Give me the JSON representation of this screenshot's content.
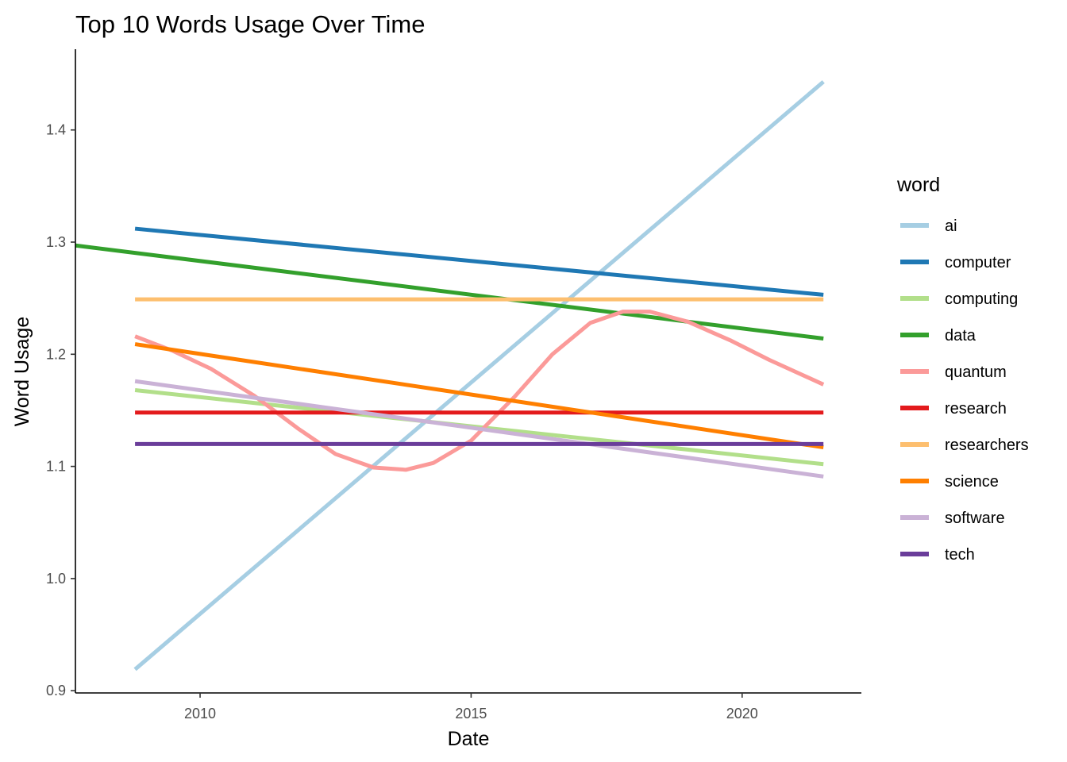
{
  "chart_data": {
    "type": "line",
    "title": "Top 10 Words Usage Over Time",
    "xlabel": "Date",
    "ylabel": "Word Usage",
    "xlim": [
      2007.7,
      2022.2
    ],
    "ylim": [
      0.898,
      1.472
    ],
    "x_ticks": [
      2010,
      2015,
      2020
    ],
    "y_ticks": [
      0.9,
      1.0,
      1.1,
      1.2,
      1.3,
      1.4
    ],
    "x_tick_labels": [
      "2010",
      "2015",
      "2020"
    ],
    "y_tick_labels": [
      "0.9",
      "1.0",
      "1.1",
      "1.2",
      "1.3",
      "1.4"
    ],
    "grid": false,
    "legend": {
      "title": "word",
      "position": "right"
    },
    "series": [
      {
        "name": "ai",
        "color": "#a6cee3",
        "x": [
          2008.8,
          2021.5
        ],
        "y": [
          0.919,
          1.443
        ]
      },
      {
        "name": "computer",
        "color": "#1f78b4",
        "x": [
          2008.8,
          2021.5
        ],
        "y": [
          1.312,
          1.253
        ]
      },
      {
        "name": "computing",
        "color": "#b2df8a",
        "x": [
          2008.8,
          2021.5
        ],
        "y": [
          1.168,
          1.102
        ]
      },
      {
        "name": "data",
        "color": "#33a02c",
        "x": [
          2007.7,
          2021.5
        ],
        "y": [
          1.297,
          1.214
        ]
      },
      {
        "name": "quantum",
        "color": "#fb9a99",
        "x": [
          2008.8,
          2009.5,
          2010.2,
          2011.0,
          2011.8,
          2012.5,
          2013.2,
          2013.8,
          2014.3,
          2015.0,
          2015.8,
          2016.5,
          2017.2,
          2017.8,
          2018.3,
          2019.0,
          2019.8,
          2020.5,
          2021.5
        ],
        "y": [
          1.216,
          1.203,
          1.187,
          1.163,
          1.134,
          1.111,
          1.099,
          1.097,
          1.103,
          1.123,
          1.162,
          1.2,
          1.228,
          1.238,
          1.238,
          1.229,
          1.212,
          1.195,
          1.173
        ]
      },
      {
        "name": "research",
        "color": "#e31a1c",
        "x": [
          2008.8,
          2021.5
        ],
        "y": [
          1.148,
          1.148
        ]
      },
      {
        "name": "researchers",
        "color": "#fdbf6f",
        "x": [
          2008.8,
          2021.5
        ],
        "y": [
          1.249,
          1.249
        ]
      },
      {
        "name": "science",
        "color": "#ff7f00",
        "x": [
          2008.8,
          2021.5
        ],
        "y": [
          1.209,
          1.117
        ]
      },
      {
        "name": "software",
        "color": "#cab2d6",
        "x": [
          2008.8,
          2021.5
        ],
        "y": [
          1.176,
          1.091
        ]
      },
      {
        "name": "tech",
        "color": "#6a3d9a",
        "x": [
          2008.8,
          2021.5
        ],
        "y": [
          1.12,
          1.12
        ]
      }
    ]
  }
}
